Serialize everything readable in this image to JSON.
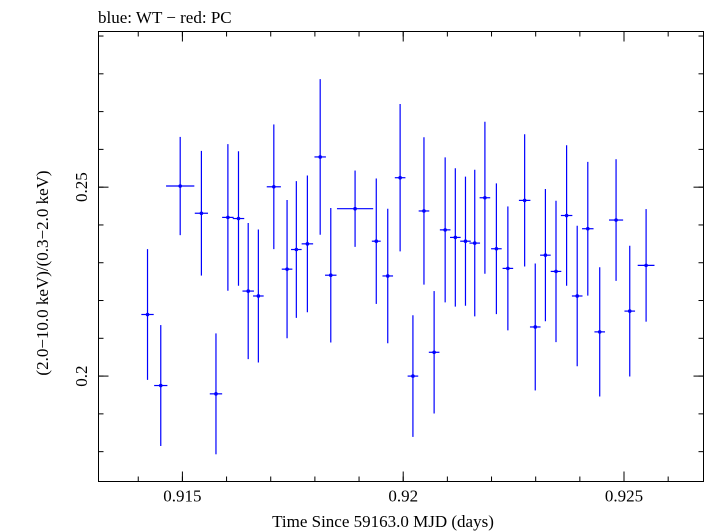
{
  "chart_data": {
    "type": "scatter",
    "title": "blue: WT − red: PC",
    "xlabel": "Time Since 59163.0 MJD (days)",
    "ylabel": "(2.0−10.0 keV)/(0.3−2.0 keV)",
    "xlim": [
      0.9131,
      0.9268
    ],
    "ylim": [
      0.1721,
      0.2912
    ],
    "grid": false,
    "x_ticks": [
      {
        "value": 0.915,
        "label": "0.915"
      },
      {
        "value": 0.92,
        "label": "0.92"
      },
      {
        "value": 0.925,
        "label": "0.925"
      }
    ],
    "y_ticks": [
      {
        "value": 0.2,
        "label": "0.2"
      },
      {
        "value": 0.25,
        "label": "0.25"
      }
    ],
    "series": [
      {
        "name": "WT",
        "color": "#0000ff",
        "points": [
          {
            "x": 0.91421,
            "xerr": 0.00014,
            "y": 0.2163,
            "yerr": 0.0173
          },
          {
            "x": 0.91451,
            "xerr": 0.00015,
            "y": 0.1975,
            "yerr": 0.016
          },
          {
            "x": 0.91495,
            "xerr": 0.00032,
            "y": 0.2503,
            "yerr": 0.013
          },
          {
            "x": 0.91543,
            "xerr": 0.00015,
            "y": 0.2431,
            "yerr": 0.0165
          },
          {
            "x": 0.91576,
            "xerr": 0.00014,
            "y": 0.1953,
            "yerr": 0.016
          },
          {
            "x": 0.91603,
            "xerr": 0.00013,
            "y": 0.242,
            "yerr": 0.0194
          },
          {
            "x": 0.91627,
            "xerr": 0.00013,
            "y": 0.2417,
            "yerr": 0.0178
          },
          {
            "x": 0.91649,
            "xerr": 0.00013,
            "y": 0.2225,
            "yerr": 0.018
          },
          {
            "x": 0.91672,
            "xerr": 0.00012,
            "y": 0.2212,
            "yerr": 0.0176
          },
          {
            "x": 0.91707,
            "xerr": 0.00016,
            "y": 0.2501,
            "yerr": 0.0165
          },
          {
            "x": 0.91737,
            "xerr": 0.00012,
            "y": 0.2283,
            "yerr": 0.0183
          },
          {
            "x": 0.91758,
            "xerr": 0.00012,
            "y": 0.2335,
            "yerr": 0.0181
          },
          {
            "x": 0.91783,
            "xerr": 0.00013,
            "y": 0.235,
            "yerr": 0.0181
          },
          {
            "x": 0.91812,
            "xerr": 0.00013,
            "y": 0.258,
            "yerr": 0.0206
          },
          {
            "x": 0.91836,
            "xerr": 0.00013,
            "y": 0.2267,
            "yerr": 0.0178
          },
          {
            "x": 0.91891,
            "xerr": 0.00041,
            "y": 0.2443,
            "yerr": 0.0101
          },
          {
            "x": 0.91939,
            "xerr": 0.0001,
            "y": 0.2357,
            "yerr": 0.0166
          },
          {
            "x": 0.91965,
            "xerr": 0.00012,
            "y": 0.2265,
            "yerr": 0.0178
          },
          {
            "x": 0.91993,
            "xerr": 0.00012,
            "y": 0.2525,
            "yerr": 0.0195
          },
          {
            "x": 0.92022,
            "xerr": 0.00012,
            "y": 0.2,
            "yerr": 0.0161
          },
          {
            "x": 0.92047,
            "xerr": 0.00012,
            "y": 0.2437,
            "yerr": 0.0195
          },
          {
            "x": 0.9207,
            "xerr": 0.00012,
            "y": 0.2063,
            "yerr": 0.0162
          },
          {
            "x": 0.92095,
            "xerr": 0.00012,
            "y": 0.2387,
            "yerr": 0.0192
          },
          {
            "x": 0.92118,
            "xerr": 0.00012,
            "y": 0.2367,
            "yerr": 0.0183
          },
          {
            "x": 0.92141,
            "xerr": 0.00012,
            "y": 0.2357,
            "yerr": 0.0171
          },
          {
            "x": 0.92162,
            "xerr": 0.00012,
            "y": 0.2352,
            "yerr": 0.0194
          },
          {
            "x": 0.92185,
            "xerr": 0.00012,
            "y": 0.2472,
            "yerr": 0.0201
          },
          {
            "x": 0.92211,
            "xerr": 0.00012,
            "y": 0.2337,
            "yerr": 0.0173
          },
          {
            "x": 0.92237,
            "xerr": 0.00012,
            "y": 0.2285,
            "yerr": 0.0164
          },
          {
            "x": 0.92275,
            "xerr": 0.00013,
            "y": 0.2465,
            "yerr": 0.0175
          },
          {
            "x": 0.92299,
            "xerr": 0.00012,
            "y": 0.213,
            "yerr": 0.0168
          },
          {
            "x": 0.92322,
            "xerr": 0.00012,
            "y": 0.232,
            "yerr": 0.0175
          },
          {
            "x": 0.92346,
            "xerr": 0.00012,
            "y": 0.2277,
            "yerr": 0.0187
          },
          {
            "x": 0.9237,
            "xerr": 0.00013,
            "y": 0.2425,
            "yerr": 0.0186
          },
          {
            "x": 0.92394,
            "xerr": 0.00012,
            "y": 0.2212,
            "yerr": 0.0186
          },
          {
            "x": 0.92418,
            "xerr": 0.00013,
            "y": 0.239,
            "yerr": 0.0177
          },
          {
            "x": 0.92445,
            "xerr": 0.00012,
            "y": 0.2117,
            "yerr": 0.0171
          },
          {
            "x": 0.92482,
            "xerr": 0.00016,
            "y": 0.2413,
            "yerr": 0.0161
          },
          {
            "x": 0.92513,
            "xerr": 0.00012,
            "y": 0.2172,
            "yerr": 0.0173
          },
          {
            "x": 0.9255,
            "xerr": 0.00019,
            "y": 0.2293,
            "yerr": 0.0149
          }
        ]
      }
    ]
  }
}
